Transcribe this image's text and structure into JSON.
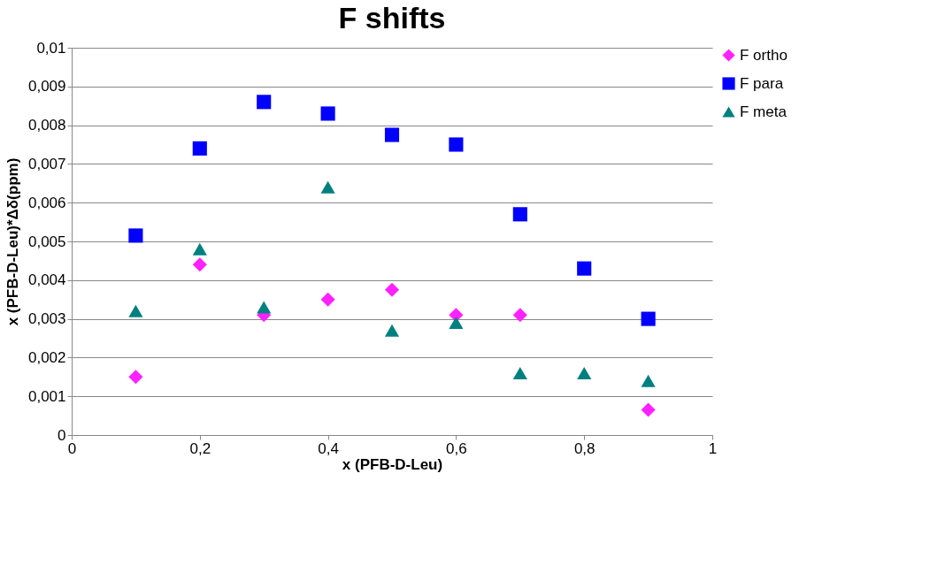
{
  "chart_data": {
    "type": "scatter",
    "title": "F shifts",
    "xlabel": "x (PFB-D-Leu)",
    "ylabel": "x (PFB-D-Leu)*Δδ(ppm)",
    "x": [
      0.1,
      0.2,
      0.3,
      0.4,
      0.5,
      0.6,
      0.7,
      0.8,
      0.9
    ],
    "series": [
      {
        "name": "F ortho",
        "color": "#ff20ff",
        "marker": "diamond",
        "values": [
          0.0015,
          0.0044,
          0.0031,
          0.0035,
          0.00375,
          0.0031,
          0.0031,
          null,
          0.00065
        ]
      },
      {
        "name": "F para",
        "color": "#0000ff",
        "marker": "square",
        "values": [
          0.00515,
          0.0074,
          0.0086,
          0.0083,
          0.00775,
          0.0075,
          0.0057,
          0.0043,
          0.003
        ]
      },
      {
        "name": "F meta",
        "color": "#008080",
        "marker": "triangle",
        "values": [
          0.0032,
          0.0048,
          0.0033,
          0.0064,
          0.0027,
          0.0029,
          0.0016,
          0.0016,
          0.0014
        ]
      }
    ],
    "xlim": [
      0,
      1
    ],
    "ylim": [
      0,
      0.01
    ],
    "xticks": [
      0,
      {
        "value": 0.2,
        "label": "0,2"
      },
      {
        "value": 0.4,
        "label": "0,4"
      },
      {
        "value": 0.6,
        "label": "0,6"
      },
      {
        "value": 0.8,
        "label": "0,8"
      },
      1
    ],
    "yticks": [
      0,
      {
        "value": 0.001,
        "label": "0,001"
      },
      {
        "value": 0.002,
        "label": "0,002"
      },
      {
        "value": 0.003,
        "label": "0,003"
      },
      {
        "value": 0.004,
        "label": "0,004"
      },
      {
        "value": 0.005,
        "label": "0,005"
      },
      {
        "value": 0.006,
        "label": "0,006"
      },
      {
        "value": 0.007,
        "label": "0,007"
      },
      {
        "value": 0.008,
        "label": "0,008"
      },
      {
        "value": 0.009,
        "label": "0,009"
      },
      {
        "value": 0.01,
        "label": "0,01"
      }
    ],
    "grid": "y",
    "legend": "right"
  }
}
